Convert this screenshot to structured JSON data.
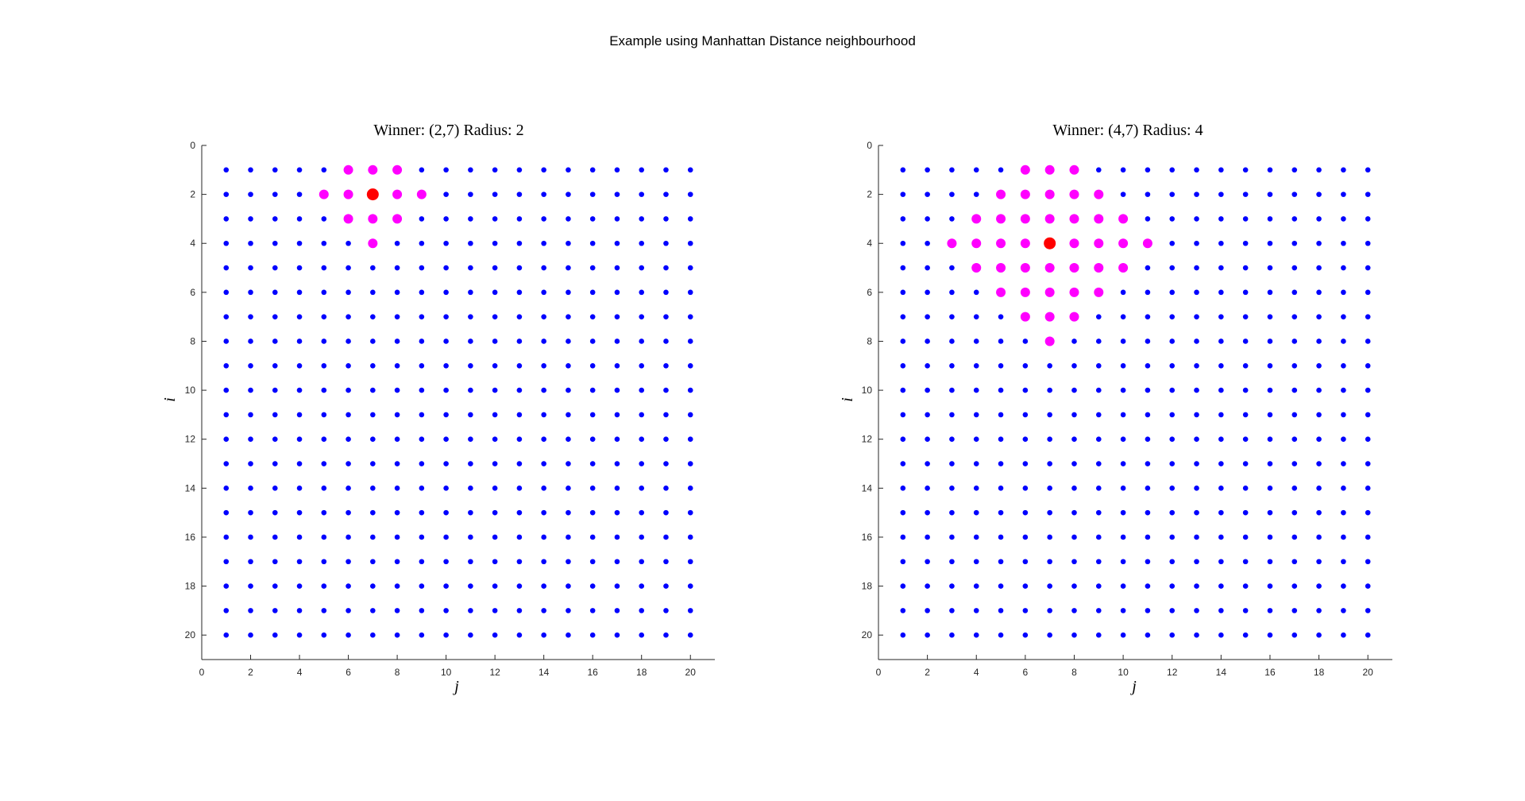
{
  "figure": {
    "title": "Example using Manhattan Distance neighbourhood"
  },
  "chart_data": [
    {
      "type": "scatter",
      "title": "Winner: (2,7) Radius: 2",
      "xlabel": "j",
      "ylabel": "i",
      "xlim": [
        0,
        21
      ],
      "ylim": [
        0,
        21
      ],
      "y_reversed": true,
      "xticks": [
        0,
        2,
        4,
        6,
        8,
        10,
        12,
        14,
        16,
        18,
        20
      ],
      "yticks": [
        0,
        2,
        4,
        6,
        8,
        10,
        12,
        14,
        16,
        18,
        20
      ],
      "grid_size": 20,
      "winner": {
        "i": 2,
        "j": 7
      },
      "radius": 2,
      "colors": {
        "node": "#0000ff",
        "neighbour": "#ff00ff",
        "winner": "#ff0000"
      }
    },
    {
      "type": "scatter",
      "title": "Winner: (4,7) Radius: 4",
      "xlabel": "j",
      "ylabel": "i",
      "xlim": [
        0,
        21
      ],
      "ylim": [
        0,
        21
      ],
      "y_reversed": true,
      "xticks": [
        0,
        2,
        4,
        6,
        8,
        10,
        12,
        14,
        16,
        18,
        20
      ],
      "yticks": [
        0,
        2,
        4,
        6,
        8,
        10,
        12,
        14,
        16,
        18,
        20
      ],
      "grid_size": 20,
      "winner": {
        "i": 4,
        "j": 7
      },
      "radius": 4,
      "colors": {
        "node": "#0000ff",
        "neighbour": "#ff00ff",
        "winner": "#ff0000"
      }
    }
  ]
}
